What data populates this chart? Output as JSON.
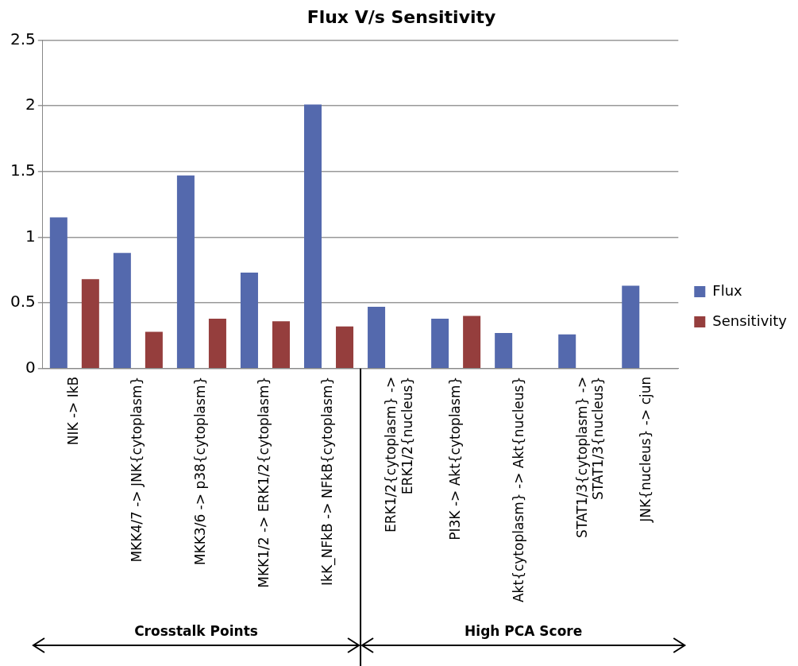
{
  "chart_data": {
    "type": "bar",
    "title": "Flux V/s Sensitivity",
    "categories": [
      "NIK -> IkB",
      "MKK4/7 -> JNK{cytoplasm}",
      "MKK3/6 -> p38{cytoplasm}",
      "MKK1/2 -> ERK1/2{cytoplasm}",
      "IkK_NFkB -> NFkB{cytoplasm}",
      "ERK1/2{cytoplasm} ->\nERK1/2{nucleus}",
      "PI3K -> Akt{cytoplasm}",
      "Akt{cytoplasm} -> Akt{nucleus}",
      "STAT1/3{cytoplasm} ->\nSTAT1/3{nucleus}",
      "JNK{nucleus} -> cjun"
    ],
    "series": [
      {
        "name": "Flux",
        "color": "#5469ad",
        "values": [
          1.15,
          0.88,
          1.47,
          0.73,
          2.01,
          0.47,
          0.38,
          0.27,
          0.26,
          0.63
        ]
      },
      {
        "name": "Sensitivity",
        "color": "#953e3d",
        "values": [
          0.68,
          0.28,
          0.38,
          0.36,
          0.32,
          null,
          0.4,
          null,
          null,
          null
        ]
      }
    ],
    "ylim": [
      0,
      2.5
    ],
    "yticks": [
      0,
      0.5,
      1,
      1.5,
      2,
      2.5
    ],
    "grid": "y",
    "legend": "right",
    "annotations": [
      "Crosstalk Points",
      "High PCA Score"
    ]
  }
}
